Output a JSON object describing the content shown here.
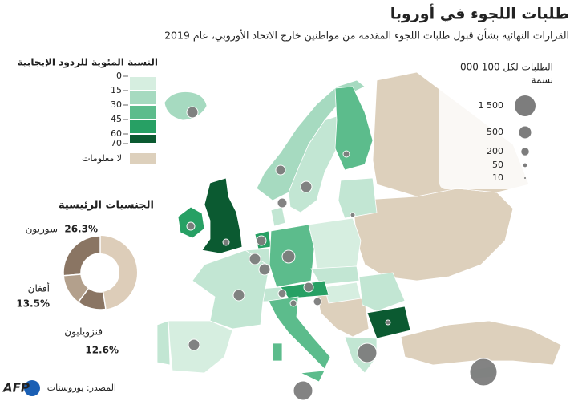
{
  "header": {
    "title": "طلبات اللجوء في أوروبا",
    "subtitle": "القرارات النهائية بشأن قبول طلبات اللجوء المقدمة من مواطنين خارج الاتحاد الأوروبي، عام 2019"
  },
  "color_legend": {
    "title": "النسبة المئوية للردود الإيجابية",
    "ticks": [
      0,
      15,
      30,
      45,
      60,
      70
    ],
    "colors": [
      "#d6eee0",
      "#a6dac0",
      "#5cbc8c",
      "#27a064",
      "#0b5a31"
    ],
    "no_data": "لا معلومات",
    "no_data_color": "#ddd0bc"
  },
  "size_legend": {
    "title": [
      "الطلبات لكل 100 000",
      "نسمة"
    ],
    "sizes": [
      {
        "value": 1500,
        "label": "1 500"
      },
      500,
      200,
      50,
      10
    ]
  },
  "chart_data": {
    "type": "donut",
    "title": "الجنسيات الرئيسية",
    "categories": [
      "سوريون",
      "أفغان",
      "فنزويليون"
    ],
    "values": [
      26.3,
      13.5,
      12.6
    ],
    "value_labels": [
      "26.3%",
      "13.5%",
      "12.6%"
    ],
    "colors": [
      "#8a7563",
      "#b3a08c",
      "#8a7563"
    ],
    "rest_color": "#ddcdb9"
  },
  "footer": {
    "source": "المصدر: يوروستات",
    "logo": "AFP"
  }
}
